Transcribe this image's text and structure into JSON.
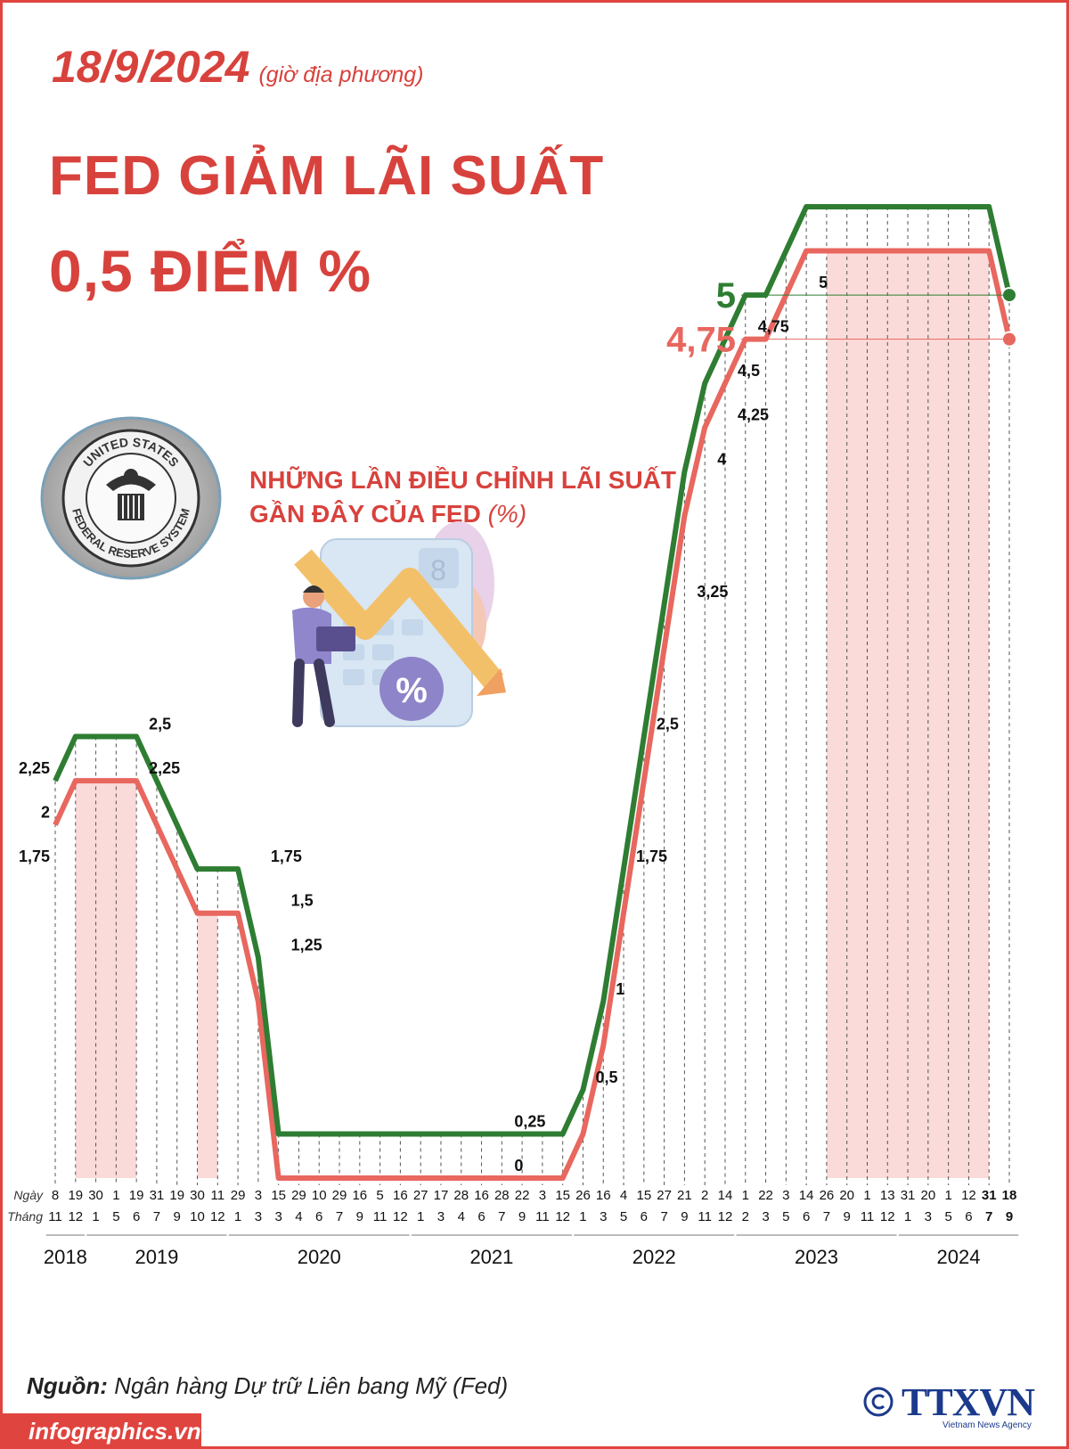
{
  "header": {
    "date": "18/9/2024",
    "date_note": "(giờ địa phương)",
    "title_line1": "FED GIẢM LÃI SUẤT",
    "title_line2": "0,5 ĐIỂM %",
    "subtitle_line1": "NHỮNG LẦN ĐIỀU CHỈNH LÃI SUẤT",
    "subtitle_line2": "GẦN ĐÂY CỦA FED",
    "subtitle_unit": "(%)"
  },
  "seal": {
    "text_top": "UNITED STATES",
    "text_bottom": "FEDERAL RESERVE SYSTEM",
    "icon": "federal-reserve-seal-icon"
  },
  "illustration": {
    "icon": "person-with-laptop-calculator-falling-arrow-icon",
    "badge": "%",
    "display_digit": "8"
  },
  "chart_data": {
    "type": "line",
    "row_labels": {
      "day": "Ngày",
      "month": "Tháng"
    },
    "days": [
      "8",
      "19",
      "30",
      "1",
      "19",
      "31",
      "19",
      "30",
      "11",
      "29",
      "3",
      "15",
      "29",
      "10",
      "29",
      "16",
      "5",
      "16",
      "27",
      "17",
      "28",
      "16",
      "28",
      "22",
      "3",
      "15",
      "26",
      "16",
      "4",
      "15",
      "27",
      "21",
      "2",
      "14",
      "1",
      "22",
      "3",
      "14",
      "26",
      "20",
      "1",
      "13",
      "31",
      "20",
      "1",
      "12",
      "31",
      "18"
    ],
    "months": [
      "11",
      "12",
      "1",
      "5",
      "6",
      "7",
      "9",
      "10",
      "12",
      "1",
      "3",
      "3",
      "4",
      "6",
      "7",
      "9",
      "11",
      "12",
      "1",
      "3",
      "4",
      "6",
      "7",
      "9",
      "11",
      "12",
      "1",
      "3",
      "5",
      "6",
      "7",
      "9",
      "11",
      "12",
      "2",
      "3",
      "5",
      "6",
      "7",
      "9",
      "11",
      "12",
      "1",
      "3",
      "5",
      "6",
      "7",
      "9"
    ],
    "years": [
      {
        "label": "2018",
        "from": 0,
        "to": 1
      },
      {
        "label": "2019",
        "from": 2,
        "to": 8
      },
      {
        "label": "2020",
        "from": 9,
        "to": 17
      },
      {
        "label": "2021",
        "from": 18,
        "to": 25
      },
      {
        "label": "2022",
        "from": 26,
        "to": 33
      },
      {
        "label": "2023",
        "from": 34,
        "to": 41
      },
      {
        "label": "2024",
        "from": 42,
        "to": 47
      }
    ],
    "bold_columns": [
      46,
      47
    ],
    "series": [
      {
        "name_role": "upper",
        "color": "#2e7d32",
        "values": [
          2.25,
          2.5,
          2.5,
          2.5,
          2.5,
          2.25,
          2.0,
          1.75,
          1.75,
          1.75,
          1.25,
          0.25,
          0.25,
          0.25,
          0.25,
          0.25,
          0.25,
          0.25,
          0.25,
          0.25,
          0.25,
          0.25,
          0.25,
          0.25,
          0.25,
          0.25,
          0.5,
          1.0,
          1.75,
          2.5,
          3.25,
          4.0,
          4.5,
          4.75,
          5.0,
          5.0,
          5.25,
          5.5,
          5.5,
          5.5,
          5.5,
          5.5,
          5.5,
          5.5,
          5.5,
          5.5,
          5.5,
          5.0
        ]
      },
      {
        "name_role": "lower",
        "color": "#e8675f",
        "values": [
          2.0,
          2.25,
          2.25,
          2.25,
          2.25,
          2.0,
          1.75,
          1.5,
          1.5,
          1.5,
          1.0,
          0,
          0,
          0,
          0,
          0,
          0,
          0,
          0,
          0,
          0,
          0,
          0,
          0,
          0,
          0,
          0.25,
          0.75,
          1.5,
          2.25,
          3.0,
          3.75,
          4.25,
          4.5,
          4.75,
          4.75,
          5.0,
          5.25,
          5.25,
          5.25,
          5.25,
          5.25,
          5.25,
          5.25,
          5.25,
          5.25,
          5.25,
          4.75
        ]
      }
    ],
    "shaded_bands": [
      [
        1,
        4
      ],
      [
        7,
        8
      ],
      [
        11,
        25
      ],
      [
        38,
        46
      ]
    ],
    "value_labels": [
      {
        "text": "2,25",
        "i": 0,
        "v": 2.25
      },
      {
        "text": "2",
        "i": 0,
        "v": 2.0
      },
      {
        "text": "1,75",
        "i": 0,
        "v": 1.75
      },
      {
        "text": "2,5",
        "i": 4,
        "v": 2.5
      },
      {
        "text": "2,25",
        "i": 4,
        "v": 2.25
      },
      {
        "text": "1,75",
        "i": 10,
        "v": 1.75
      },
      {
        "text": "1,5",
        "i": 11,
        "v": 1.5
      },
      {
        "text": "1,25",
        "i": 11,
        "v": 1.25
      },
      {
        "text": "0,25",
        "i": 22,
        "v": 0.25
      },
      {
        "text": "0",
        "i": 22,
        "v": 0
      },
      {
        "text": "0,5",
        "i": 26,
        "v": 0.5
      },
      {
        "text": "1",
        "i": 27,
        "v": 1.0
      },
      {
        "text": "1,75",
        "i": 28,
        "v": 1.75
      },
      {
        "text": "2,5",
        "i": 29,
        "v": 2.5
      },
      {
        "text": "3,25",
        "i": 31,
        "v": 3.25
      },
      {
        "text": "4",
        "i": 32,
        "v": 4.0
      },
      {
        "text": "4,25",
        "i": 33,
        "v": 4.25
      },
      {
        "text": "4,5",
        "i": 33,
        "v": 4.5
      },
      {
        "text": "4,75",
        "i": 34,
        "v": 4.75
      },
      {
        "text": "5",
        "i": 37,
        "v": 5.0
      }
    ],
    "callouts": [
      {
        "text": "5",
        "v": 5.0,
        "color": "#2e7d32"
      },
      {
        "text": "4,75",
        "v": 4.75,
        "color": "#e8675f"
      }
    ],
    "ylim": [
      0,
      5.5
    ]
  },
  "source": {
    "label": "Nguồn:",
    "text": "Ngân hàng Dự trữ Liên bang Mỹ (Fed)"
  },
  "footer": {
    "site": "infographics.vn",
    "agency": "TTXVN",
    "agency_sub": "Vietnam News Agency",
    "copyright_icon": "copyright-icon"
  },
  "colors": {
    "accent": "#d8423d",
    "green": "#2e7d32",
    "salmon": "#e8675f",
    "band": "#fbdada"
  }
}
